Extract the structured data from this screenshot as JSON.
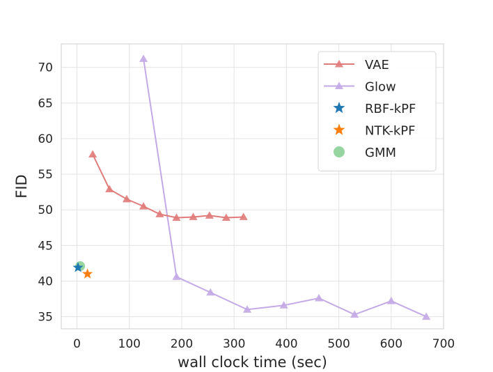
{
  "chart_data": {
    "type": "line",
    "xlabel": "wall clock time (sec)",
    "ylabel": "FID",
    "xlim": [
      -30,
      700
    ],
    "ylim": [
      33.3,
      73.3
    ],
    "xticks": [
      0,
      100,
      200,
      300,
      400,
      500,
      600,
      700
    ],
    "yticks": [
      35,
      40,
      45,
      50,
      55,
      60,
      65,
      70
    ],
    "grid": true,
    "legend_position": "top-right",
    "series": [
      {
        "name": "VAE",
        "kind": "line",
        "marker": "triangle",
        "color": "#e07b79",
        "points": [
          [
            30,
            57.8
          ],
          [
            62,
            52.9
          ],
          [
            95,
            51.5
          ],
          [
            127,
            50.5
          ],
          [
            158,
            49.4
          ],
          [
            190,
            48.9
          ],
          [
            222,
            49.0
          ],
          [
            253,
            49.2
          ],
          [
            285,
            48.9
          ],
          [
            318,
            49.0
          ]
        ]
      },
      {
        "name": "Glow",
        "kind": "line",
        "marker": "triangle",
        "color": "#c3a9e6",
        "points": [
          [
            127,
            71.2
          ],
          [
            190,
            40.6
          ],
          [
            255,
            38.4
          ],
          [
            325,
            36.0
          ],
          [
            395,
            36.6
          ],
          [
            462,
            37.6
          ],
          [
            530,
            35.3
          ],
          [
            600,
            37.2
          ],
          [
            667,
            35.0
          ]
        ]
      },
      {
        "name": "RBF-kPF",
        "kind": "scatter",
        "marker": "star",
        "color": "#1f77b4",
        "points": [
          [
            2,
            41.9
          ]
        ]
      },
      {
        "name": "NTK-kPF",
        "kind": "scatter",
        "marker": "star",
        "color": "#ff7f0e",
        "points": [
          [
            20,
            41.0
          ]
        ]
      },
      {
        "name": "GMM",
        "kind": "scatter",
        "marker": "circle",
        "color": "#7dcb88",
        "points": [
          [
            6,
            42.1
          ]
        ]
      }
    ]
  }
}
